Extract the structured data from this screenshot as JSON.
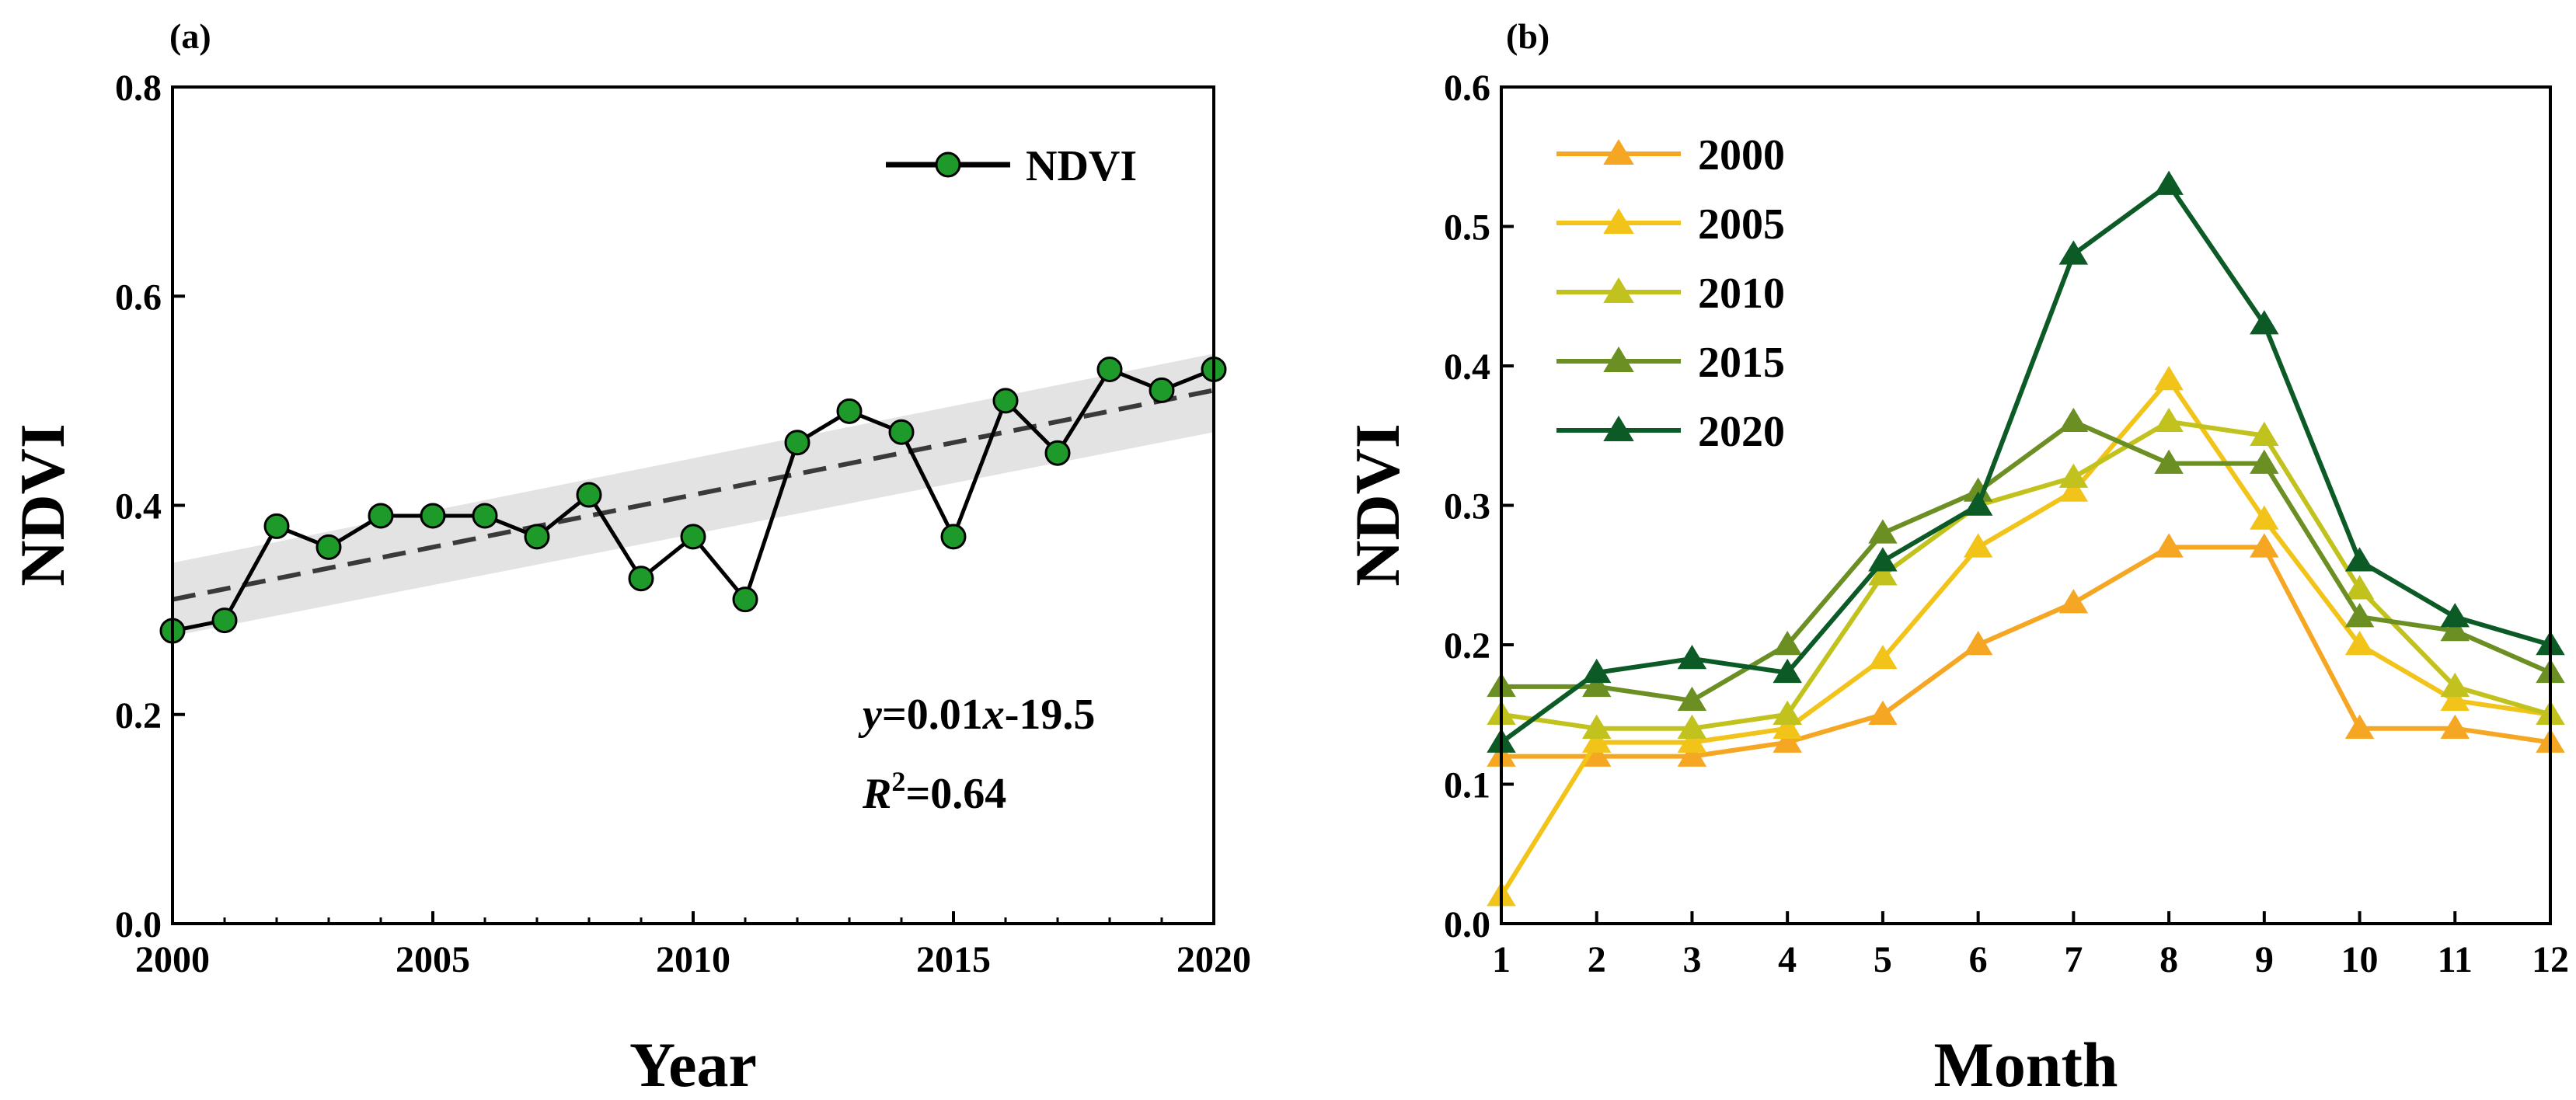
{
  "chart_data": [
    {
      "id": "a",
      "type": "line",
      "panel_label": "(a)",
      "title": "",
      "xlabel": "Year",
      "ylabel": "NDVI",
      "xlim": [
        2000,
        2020
      ],
      "ylim": [
        0.0,
        0.8
      ],
      "x_ticks": [
        2000,
        2005,
        2010,
        2015,
        2020
      ],
      "x_tick_labels": [
        "2000",
        "2005",
        "2010",
        "2015",
        "2020"
      ],
      "y_ticks": [
        0.0,
        0.2,
        0.4,
        0.6,
        0.8
      ],
      "y_tick_labels": [
        "0.0",
        "0.2",
        "0.4",
        "0.6",
        "0.8"
      ],
      "grid": false,
      "legend_position": "top-right",
      "series": [
        {
          "name": "NDVI",
          "line_color": "#000000",
          "marker": "circle",
          "marker_color": "#1e9a2a",
          "x": [
            2000,
            2001,
            2002,
            2003,
            2004,
            2005,
            2006,
            2007,
            2008,
            2009,
            2010,
            2011,
            2012,
            2013,
            2014,
            2015,
            2016,
            2017,
            2018,
            2019,
            2020
          ],
          "y": [
            0.28,
            0.29,
            0.38,
            0.36,
            0.39,
            0.39,
            0.39,
            0.37,
            0.41,
            0.33,
            0.37,
            0.31,
            0.46,
            0.49,
            0.47,
            0.37,
            0.5,
            0.45,
            0.53,
            0.51,
            0.53
          ]
        }
      ],
      "trend": {
        "style": "dashed",
        "color": "#3a3a3a",
        "x": [
          2000,
          2020
        ],
        "y": [
          0.31,
          0.51
        ],
        "confidence_band": {
          "color": "#e3e3e3",
          "lower": [
            0.275,
            0.47
          ],
          "upper": [
            0.345,
            0.545
          ]
        }
      },
      "equation": {
        "var_y": "y",
        "eq1": "=0.01",
        "var_x": "x",
        "eq2": "-19.5",
        "r_letter": "R",
        "r_exp": "2",
        "r_value": "=0.64"
      }
    },
    {
      "id": "b",
      "type": "line",
      "panel_label": "(b)",
      "title": "",
      "xlabel": "Month",
      "ylabel": "NDVI",
      "xlim": [
        1,
        12
      ],
      "ylim": [
        0.0,
        0.6
      ],
      "x_ticks": [
        1,
        2,
        3,
        4,
        5,
        6,
        7,
        8,
        9,
        10,
        11,
        12
      ],
      "x_tick_labels": [
        "1",
        "2",
        "3",
        "4",
        "5",
        "6",
        "7",
        "8",
        "9",
        "10",
        "11",
        "12"
      ],
      "y_ticks": [
        0.0,
        0.1,
        0.2,
        0.3,
        0.4,
        0.5,
        0.6
      ],
      "y_tick_labels": [
        "0.0",
        "0.1",
        "0.2",
        "0.3",
        "0.4",
        "0.5",
        "0.6"
      ],
      "grid": false,
      "legend_position": "top-left",
      "categories": [
        1,
        2,
        3,
        4,
        5,
        6,
        7,
        8,
        9,
        10,
        11,
        12
      ],
      "series": [
        {
          "name": "2000",
          "color": "#f5a623",
          "marker": "triangle",
          "values": [
            0.12,
            0.12,
            0.12,
            0.13,
            0.15,
            0.2,
            0.23,
            0.27,
            0.27,
            0.14,
            0.14,
            0.13
          ]
        },
        {
          "name": "2005",
          "color": "#f2c318",
          "marker": "triangle",
          "values": [
            0.02,
            0.13,
            0.13,
            0.14,
            0.19,
            0.27,
            0.31,
            0.39,
            0.29,
            0.2,
            0.16,
            0.15
          ]
        },
        {
          "name": "2010",
          "color": "#c2c21e",
          "marker": "triangle",
          "values": [
            0.15,
            0.14,
            0.14,
            0.15,
            0.25,
            0.3,
            0.32,
            0.36,
            0.35,
            0.24,
            0.17,
            0.15
          ]
        },
        {
          "name": "2015",
          "color": "#6b8f23",
          "marker": "triangle",
          "values": [
            0.17,
            0.17,
            0.16,
            0.2,
            0.28,
            0.31,
            0.36,
            0.33,
            0.33,
            0.22,
            0.21,
            0.18
          ]
        },
        {
          "name": "2020",
          "color": "#0c5a26",
          "marker": "triangle",
          "values": [
            0.13,
            0.18,
            0.19,
            0.18,
            0.26,
            0.3,
            0.48,
            0.53,
            0.43,
            0.26,
            0.22,
            0.2
          ]
        }
      ]
    }
  ]
}
